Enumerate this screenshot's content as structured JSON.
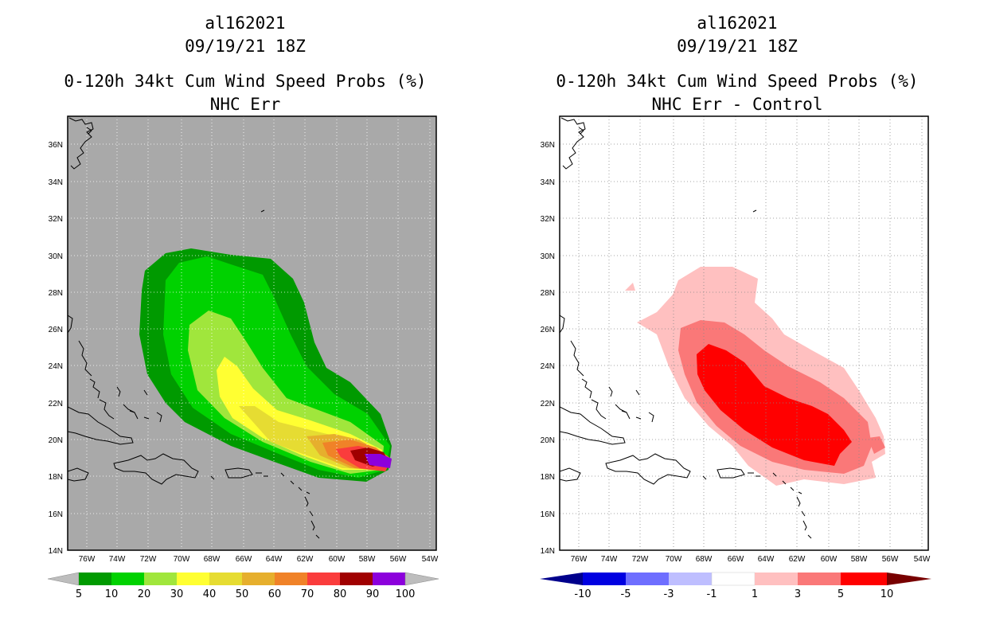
{
  "panels": [
    {
      "storm_id": "al162021",
      "datetime": "09/19/21 18Z",
      "title": "0-120h 34kt Cum Wind Speed Probs (%)",
      "subtitle": "NHC Err",
      "background_color": "#a9a9a9",
      "lat_ticks": [
        "36N",
        "34N",
        "32N",
        "30N",
        "28N",
        "26N",
        "24N",
        "22N",
        "20N",
        "18N",
        "16N",
        "14N"
      ],
      "lon_ticks": [
        "76W",
        "74W",
        "72W",
        "70W",
        "68W",
        "66W",
        "64W",
        "62W",
        "60W",
        "58W",
        "56W",
        "54W"
      ],
      "colorbar": {
        "labels": [
          "5",
          "10",
          "20",
          "30",
          "40",
          "50",
          "60",
          "70",
          "80",
          "90",
          "100"
        ],
        "colors": [
          "#009a00",
          "#00d200",
          "#a0e63c",
          "#ffff32",
          "#e6dc32",
          "#e6af2d",
          "#f08228",
          "#fa3c3c",
          "#a00000",
          "#8c00dc"
        ],
        "end_colors": [
          "#bdbdbd",
          "#bdbdbd"
        ]
      }
    },
    {
      "storm_id": "al162021",
      "datetime": "09/19/21 18Z",
      "title": "0-120h 34kt Cum Wind Speed Probs (%)",
      "subtitle": "NHC Err - Control",
      "background_color": "#ffffff",
      "lat_ticks": [
        "36N",
        "34N",
        "32N",
        "30N",
        "28N",
        "26N",
        "24N",
        "22N",
        "20N",
        "18N",
        "16N",
        "14N"
      ],
      "lon_ticks": [
        "76W",
        "74W",
        "72W",
        "70W",
        "68W",
        "66W",
        "64W",
        "62W",
        "60W",
        "58W",
        "56W",
        "54W"
      ],
      "colorbar": {
        "labels": [
          "-10",
          "-5",
          "-3",
          "-1",
          "1",
          "3",
          "5",
          "10"
        ],
        "colors": [
          "#0000e1",
          "#6e6eff",
          "#bebeff",
          "#ffffff",
          "#ffc0c0",
          "#fa7878",
          "#ff0000"
        ],
        "end_colors": [
          "#00008c",
          "#780000"
        ]
      }
    }
  ]
}
